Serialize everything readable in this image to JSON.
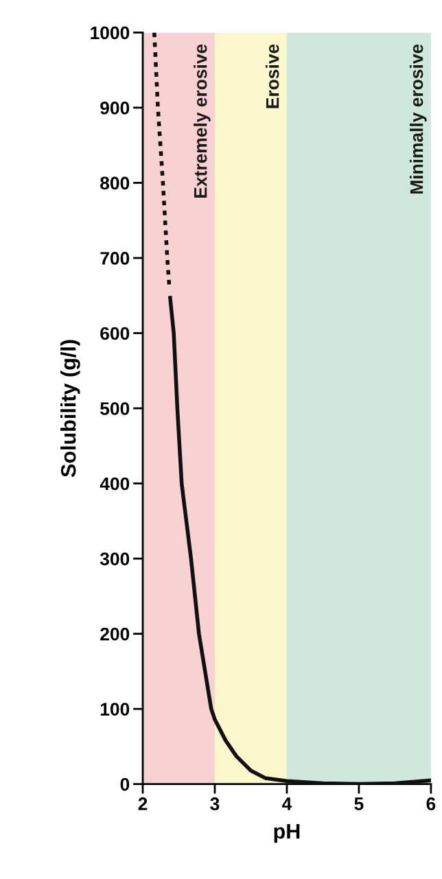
{
  "chart_data": {
    "type": "line",
    "xlabel": "pH",
    "ylabel": "Solubility (g/l)",
    "xlim": [
      2,
      6
    ],
    "xticks": [
      2,
      3,
      4,
      5,
      6
    ],
    "ylim": [
      0,
      1000
    ],
    "yticks": [
      0,
      100,
      200,
      300,
      400,
      500,
      600,
      700,
      800,
      900,
      1000
    ],
    "grid": false,
    "legend": false,
    "series": [
      {
        "color": "#111111",
        "line_style": "dotted",
        "x": [
          2.16,
          2.21,
          2.28,
          2.34,
          2.37
        ],
        "values": [
          1000,
          900,
          800,
          700,
          660
        ]
      },
      {
        "color": "#111111",
        "line_style": "solid",
        "x": [
          2.38,
          2.43,
          2.48,
          2.54,
          2.67,
          2.78,
          2.95,
          3.0,
          3.15,
          3.3,
          3.5,
          3.7,
          4.0,
          4.5,
          5.0,
          5.5,
          6.0
        ],
        "values": [
          647,
          600,
          500,
          400,
          300,
          200,
          100,
          86,
          58,
          37,
          18,
          8,
          4,
          1,
          0,
          1,
          5
        ]
      }
    ],
    "bands": [
      {
        "axis": "x",
        "from": 2,
        "to": 3,
        "label": "Extremely erosive",
        "color": "#f8d2d2"
      },
      {
        "axis": "x",
        "from": 3,
        "to": 4,
        "label": "Erosive",
        "color": "#faf7cc"
      },
      {
        "axis": "x",
        "from": 4,
        "to": 6,
        "label": "Minimally erosive",
        "color": "#cfe8dc"
      }
    ]
  }
}
